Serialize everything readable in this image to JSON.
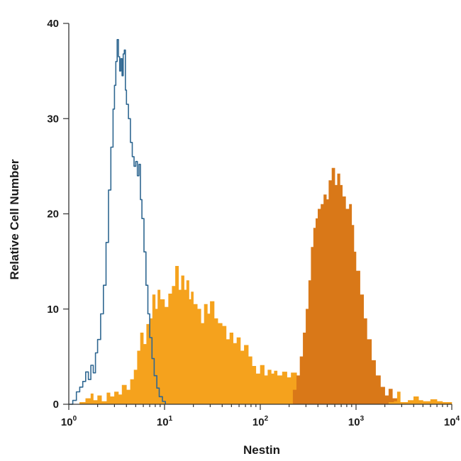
{
  "chart_data": {
    "type": "area",
    "xlabel": "Nestin",
    "ylabel": "Relative Cell Number",
    "x_scale": "log",
    "xlim": [
      1,
      10000
    ],
    "ylim": [
      0,
      40
    ],
    "x_ticks": [
      {
        "value": 1,
        "base": "10",
        "exp": "0"
      },
      {
        "value": 10,
        "base": "10",
        "exp": "1"
      },
      {
        "value": 100,
        "base": "10",
        "exp": "2"
      },
      {
        "value": 1000,
        "base": "10",
        "exp": "3"
      },
      {
        "value": 10000,
        "base": "10",
        "exp": "4"
      }
    ],
    "y_ticks": [
      {
        "value": 0,
        "label": "0"
      },
      {
        "value": 10,
        "label": "10"
      },
      {
        "value": 20,
        "label": "20"
      },
      {
        "value": 30,
        "label": "30"
      },
      {
        "value": 40,
        "label": "40"
      }
    ],
    "grid": false,
    "series": [
      {
        "style": "outline",
        "color": "#2f6791",
        "points": [
          [
            1,
            0
          ],
          [
            1.1,
            0.4
          ],
          [
            1.2,
            1.3
          ],
          [
            1.3,
            1.8
          ],
          [
            1.4,
            2.4
          ],
          [
            1.5,
            3.4
          ],
          [
            1.6,
            2.6
          ],
          [
            1.7,
            4.1
          ],
          [
            1.8,
            3.3
          ],
          [
            1.9,
            5.4
          ],
          [
            2.0,
            6.8
          ],
          [
            2.15,
            9.5
          ],
          [
            2.3,
            12.5
          ],
          [
            2.45,
            17.0
          ],
          [
            2.6,
            22.5
          ],
          [
            2.75,
            27.0
          ],
          [
            2.9,
            31.0
          ],
          [
            3.0,
            33.5
          ],
          [
            3.1,
            36.0
          ],
          [
            3.2,
            38.3
          ],
          [
            3.3,
            36.5
          ],
          [
            3.4,
            35.0
          ],
          [
            3.5,
            36.3
          ],
          [
            3.6,
            34.5
          ],
          [
            3.7,
            36.8
          ],
          [
            3.8,
            37.2
          ],
          [
            3.9,
            33.0
          ],
          [
            4.0,
            31.5
          ],
          [
            4.2,
            30.0
          ],
          [
            4.4,
            27.5
          ],
          [
            4.6,
            26.0
          ],
          [
            4.8,
            25.0
          ],
          [
            5.0,
            25.5
          ],
          [
            5.2,
            24.0
          ],
          [
            5.4,
            25.2
          ],
          [
            5.6,
            21.5
          ],
          [
            5.8,
            19.5
          ],
          [
            6.1,
            16.0
          ],
          [
            6.4,
            12.5
          ],
          [
            6.7,
            9.5
          ],
          [
            7.0,
            7.0
          ],
          [
            7.4,
            4.8
          ],
          [
            7.8,
            3.0
          ],
          [
            8.3,
            1.7
          ],
          [
            8.8,
            0.8
          ],
          [
            9.5,
            0.3
          ],
          [
            10.2,
            0
          ]
        ]
      },
      {
        "style": "filled",
        "color": "#f5a21d",
        "points": [
          [
            1,
            0
          ],
          [
            1.3,
            0.2
          ],
          [
            1.5,
            0.6
          ],
          [
            1.7,
            1.1
          ],
          [
            1.8,
            0.4
          ],
          [
            2.0,
            0.9
          ],
          [
            2.2,
            0.3
          ],
          [
            2.5,
            1.2
          ],
          [
            2.7,
            0.8
          ],
          [
            3.0,
            1.3
          ],
          [
            3.3,
            1.0
          ],
          [
            3.6,
            2.0
          ],
          [
            4.0,
            1.5
          ],
          [
            4.4,
            2.6
          ],
          [
            4.8,
            3.6
          ],
          [
            5.2,
            5.6
          ],
          [
            5.6,
            7.5
          ],
          [
            6.0,
            6.3
          ],
          [
            6.5,
            8.4
          ],
          [
            7.0,
            9.0
          ],
          [
            7.5,
            11.5
          ],
          [
            8.0,
            10.0
          ],
          [
            8.5,
            12.0
          ],
          [
            9.0,
            11.0
          ],
          [
            10.0,
            10.2
          ],
          [
            11.0,
            11.6
          ],
          [
            12.0,
            12.4
          ],
          [
            13.0,
            14.5
          ],
          [
            14.0,
            12.0
          ],
          [
            15.0,
            13.5
          ],
          [
            16.0,
            12.0
          ],
          [
            17.0,
            13.0
          ],
          [
            18.0,
            11.0
          ],
          [
            19.0,
            11.8
          ],
          [
            20.0,
            10.5
          ],
          [
            22.0,
            10.0
          ],
          [
            24.0,
            8.5
          ],
          [
            26.0,
            10.5
          ],
          [
            28.0,
            9.5
          ],
          [
            30.0,
            10.8
          ],
          [
            33.0,
            9.0
          ],
          [
            36.0,
            8.5
          ],
          [
            40.0,
            8.2
          ],
          [
            44.0,
            6.8
          ],
          [
            48.0,
            7.5
          ],
          [
            52.0,
            6.4
          ],
          [
            57.0,
            7.0
          ],
          [
            62.0,
            5.6
          ],
          [
            68.0,
            6.2
          ],
          [
            75.0,
            5.0
          ],
          [
            82.0,
            4.0
          ],
          [
            90.0,
            3.2
          ],
          [
            100.0,
            4.1
          ],
          [
            110.0,
            3.0
          ],
          [
            120.0,
            3.6
          ],
          [
            130.0,
            3.2
          ],
          [
            140.0,
            3.5
          ],
          [
            150.0,
            3.0
          ],
          [
            170.0,
            3.4
          ],
          [
            190.0,
            2.8
          ],
          [
            210.0,
            3.3
          ],
          [
            240.0,
            2.5
          ],
          [
            270.0,
            2.6
          ],
          [
            300.0,
            2.2
          ],
          [
            350.0,
            2.0
          ],
          [
            400.0,
            1.8
          ],
          [
            450.0,
            1.4
          ],
          [
            500.0,
            1.2
          ],
          [
            600.0,
            0.8
          ],
          [
            700.0,
            0.5
          ],
          [
            800.0,
            0.3
          ],
          [
            900.0,
            0.1
          ],
          [
            1000.0,
            0
          ]
        ]
      },
      {
        "style": "filled",
        "color": "#d97818",
        "points": [
          [
            200,
            0
          ],
          [
            220,
            1.5
          ],
          [
            240,
            3.0
          ],
          [
            260,
            5.0
          ],
          [
            280,
            7.5
          ],
          [
            300,
            10.0
          ],
          [
            320,
            13.0
          ],
          [
            340,
            16.5
          ],
          [
            360,
            18.5
          ],
          [
            380,
            19.5
          ],
          [
            400,
            20.5
          ],
          [
            430,
            21.0
          ],
          [
            460,
            22.0
          ],
          [
            490,
            21.5
          ],
          [
            520,
            23.5
          ],
          [
            560,
            24.8
          ],
          [
            600,
            23.0
          ],
          [
            640,
            24.2
          ],
          [
            680,
            23.0
          ],
          [
            720,
            21.8
          ],
          [
            780,
            20.5
          ],
          [
            850,
            21.0
          ],
          [
            900,
            18.8
          ],
          [
            950,
            16.0
          ],
          [
            1000,
            14.0
          ],
          [
            1100,
            11.5
          ],
          [
            1200,
            9.0
          ],
          [
            1300,
            6.8
          ],
          [
            1450,
            4.6
          ],
          [
            1600,
            3.0
          ],
          [
            1800,
            1.8
          ],
          [
            2000,
            0.9
          ],
          [
            2200,
            1.6
          ],
          [
            2400,
            0.6
          ],
          [
            2700,
            0.2
          ],
          [
            3000,
            0
          ]
        ]
      },
      {
        "style": "filled",
        "color": "#f5a21d",
        "points": [
          [
            2000,
            0
          ],
          [
            2200,
            0.2
          ],
          [
            2500,
            0.3
          ],
          [
            2700,
            1.3
          ],
          [
            2900,
            0.2
          ],
          [
            3500,
            0.4
          ],
          [
            4000,
            0.8
          ],
          [
            4500,
            0.4
          ],
          [
            5000,
            0.3
          ],
          [
            6000,
            0.5
          ],
          [
            7000,
            0.3
          ],
          [
            8000,
            0.2
          ],
          [
            10000,
            0
          ]
        ]
      }
    ]
  }
}
